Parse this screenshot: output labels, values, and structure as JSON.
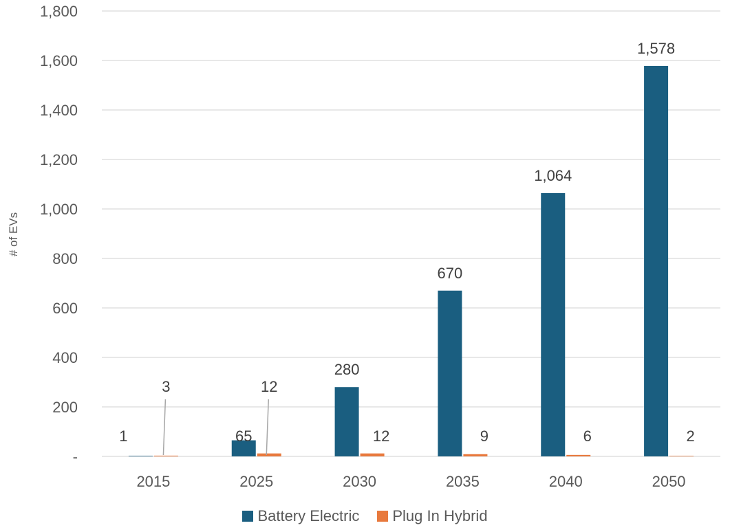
{
  "chart_data": {
    "type": "bar",
    "categories": [
      "2015",
      "2025",
      "2030",
      "2035",
      "2040",
      "2050"
    ],
    "series": [
      {
        "name": "Battery Electric",
        "color": "#1a5e80",
        "values": [
          1,
          65,
          280,
          670,
          1064,
          1578
        ],
        "labels": [
          "1",
          "65",
          "280",
          "670",
          "1,064",
          "1,578"
        ]
      },
      {
        "name": "Plug In Hybrid",
        "color": "#e8793d",
        "values": [
          3,
          12,
          12,
          9,
          6,
          2
        ],
        "labels": [
          "3",
          "12",
          "12",
          "9",
          "6",
          "2"
        ]
      }
    ],
    "ylabel": "# of EVs",
    "xlabel": "",
    "ylim": [
      0,
      1800
    ],
    "yticks": [
      0,
      200,
      400,
      600,
      800,
      1000,
      1200,
      1400,
      1600,
      1800
    ],
    "ytick_labels": [
      "-",
      "200",
      "400",
      "600",
      "800",
      "1,000",
      "1,200",
      "1,400",
      "1,600",
      "1,800"
    ],
    "grid": true,
    "legend_position": "bottom"
  }
}
